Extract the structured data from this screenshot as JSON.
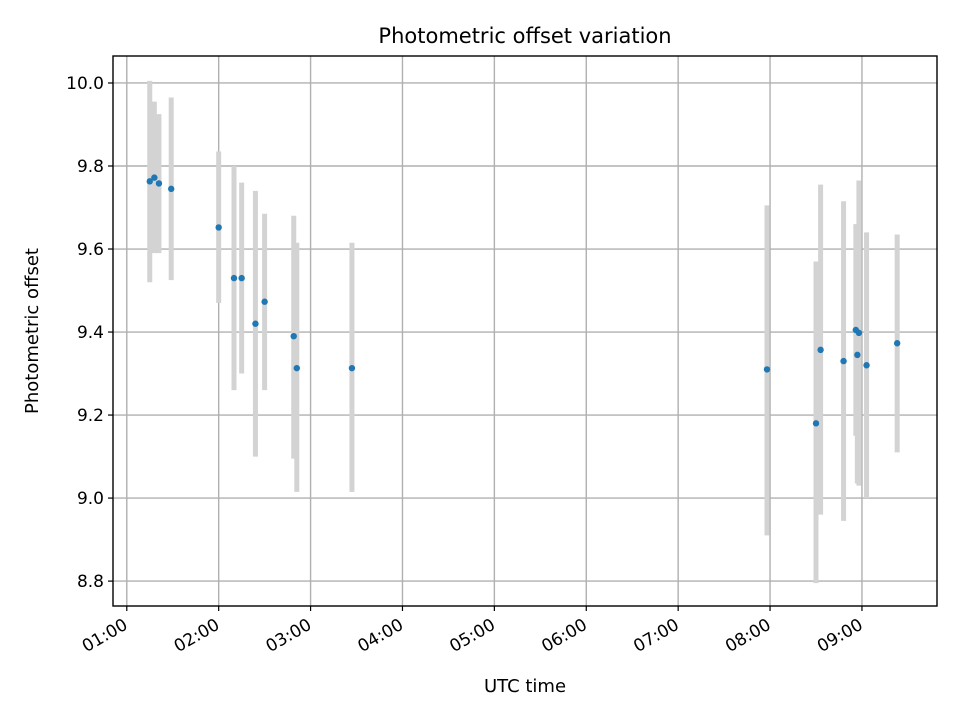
{
  "chart_data": {
    "type": "scatter",
    "title": "Photometric offset variation",
    "xlabel": "UTC time",
    "ylabel": "Photometric offset",
    "xlim": [
      "00:51",
      "09:49"
    ],
    "ylim": [
      8.74,
      10.065
    ],
    "x_ticks": [
      "01:00",
      "02:00",
      "03:00",
      "04:00",
      "05:00",
      "06:00",
      "07:00",
      "08:00",
      "09:00"
    ],
    "y_ticks": [
      "8.8",
      "9.0",
      "9.2",
      "9.4",
      "9.6",
      "9.8",
      "10.0"
    ],
    "grid": true,
    "point_color": "#1f77b4",
    "errorbar_color": "#d3d3d3",
    "points": [
      {
        "x": "01:15",
        "y": 9.763,
        "yerr_low": 9.52,
        "yerr_high": 10.005
      },
      {
        "x": "01:18",
        "y": 9.772,
        "yerr_low": 9.59,
        "yerr_high": 9.955
      },
      {
        "x": "01:21",
        "y": 9.758,
        "yerr_low": 9.59,
        "yerr_high": 9.925
      },
      {
        "x": "01:29",
        "y": 9.745,
        "yerr_low": 9.525,
        "yerr_high": 9.965
      },
      {
        "x": "02:00",
        "y": 9.652,
        "yerr_low": 9.47,
        "yerr_high": 9.835
      },
      {
        "x": "02:10",
        "y": 9.53,
        "yerr_low": 9.26,
        "yerr_high": 9.8
      },
      {
        "x": "02:15",
        "y": 9.53,
        "yerr_low": 9.3,
        "yerr_high": 9.76
      },
      {
        "x": "02:24",
        "y": 9.42,
        "yerr_low": 9.1,
        "yerr_high": 9.74
      },
      {
        "x": "02:30",
        "y": 9.473,
        "yerr_low": 9.26,
        "yerr_high": 9.685
      },
      {
        "x": "02:49",
        "y": 9.39,
        "yerr_low": 9.095,
        "yerr_high": 9.68
      },
      {
        "x": "02:51",
        "y": 9.313,
        "yerr_low": 9.015,
        "yerr_high": 9.615
      },
      {
        "x": "03:27",
        "y": 9.313,
        "yerr_low": 9.015,
        "yerr_high": 9.615
      },
      {
        "x": "07:58",
        "y": 9.31,
        "yerr_low": 8.91,
        "yerr_high": 9.705
      },
      {
        "x": "08:30",
        "y": 9.18,
        "yerr_low": 8.795,
        "yerr_high": 9.57
      },
      {
        "x": "08:33",
        "y": 9.357,
        "yerr_low": 8.96,
        "yerr_high": 9.755
      },
      {
        "x": "08:48",
        "y": 9.33,
        "yerr_low": 8.945,
        "yerr_high": 9.715
      },
      {
        "x": "08:56",
        "y": 9.405,
        "yerr_low": 9.15,
        "yerr_high": 9.66
      },
      {
        "x": "08:57",
        "y": 9.345,
        "yerr_low": 9.035,
        "yerr_high": 9.655
      },
      {
        "x": "08:58",
        "y": 9.398,
        "yerr_low": 9.03,
        "yerr_high": 9.765
      },
      {
        "x": "09:03",
        "y": 9.32,
        "yerr_low": 9.0,
        "yerr_high": 9.64
      },
      {
        "x": "09:23",
        "y": 9.373,
        "yerr_low": 9.11,
        "yerr_high": 9.635
      }
    ]
  }
}
